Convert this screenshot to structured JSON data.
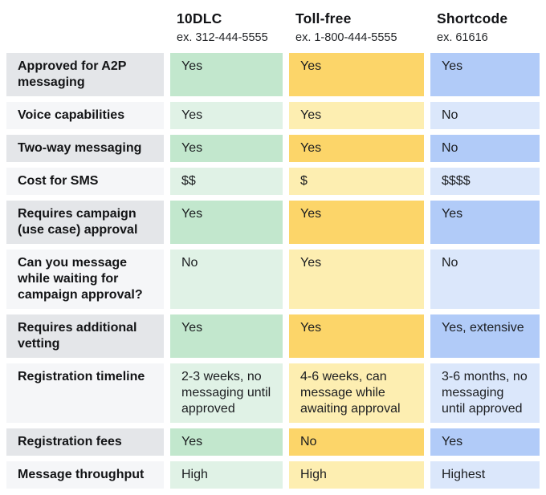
{
  "header": {
    "columns": [
      {
        "title": "10DLC",
        "example": "ex. 312-444-5555"
      },
      {
        "title": "Toll-free",
        "example": "ex. 1-800-444-5555"
      },
      {
        "title": "Shortcode",
        "example": "ex. 61616"
      }
    ]
  },
  "rows": [
    {
      "label": "Approved for A2P messaging",
      "dlc": "Yes",
      "tollfree": "Yes",
      "shortcode": "Yes"
    },
    {
      "label": "Voice capabilities",
      "dlc": "Yes",
      "tollfree": "Yes",
      "shortcode": "No"
    },
    {
      "label": "Two-way messaging",
      "dlc": "Yes",
      "tollfree": "Yes",
      "shortcode": "No"
    },
    {
      "label": "Cost for SMS",
      "dlc": "$$",
      "tollfree": "$",
      "shortcode": "$$$$"
    },
    {
      "label": "Requires campaign (use case) approval",
      "dlc": "Yes",
      "tollfree": "Yes",
      "shortcode": "Yes"
    },
    {
      "label": "Can you message while waiting for campaign approval?",
      "dlc": "No",
      "tollfree": "Yes",
      "shortcode": "No"
    },
    {
      "label": "Requires additional vetting",
      "dlc": "Yes",
      "tollfree": "Yes",
      "shortcode": "Yes, extensive"
    },
    {
      "label": "Registration timeline",
      "dlc": "2-3 weeks, no messaging until approved",
      "tollfree": "4-6 weeks, can message while awaiting approval",
      "shortcode": "3-6 months, no messaging until approved"
    },
    {
      "label": "Registration fees",
      "dlc": "Yes",
      "tollfree": "No",
      "shortcode": "Yes"
    },
    {
      "label": "Message throughput",
      "dlc": "High",
      "tollfree": "High",
      "shortcode": "Highest"
    }
  ],
  "colors": {
    "label-dark": "#e4e6e9",
    "label-light": "#f5f6f8",
    "green-dark": "#c2e7cd",
    "green-light": "#e0f2e6",
    "yellow-dark": "#fcd569",
    "yellow-light": "#fdeeb1",
    "blue-dark": "#b1cbf8",
    "blue-light": "#dbe7fb",
    "text": "#1b1d20"
  }
}
